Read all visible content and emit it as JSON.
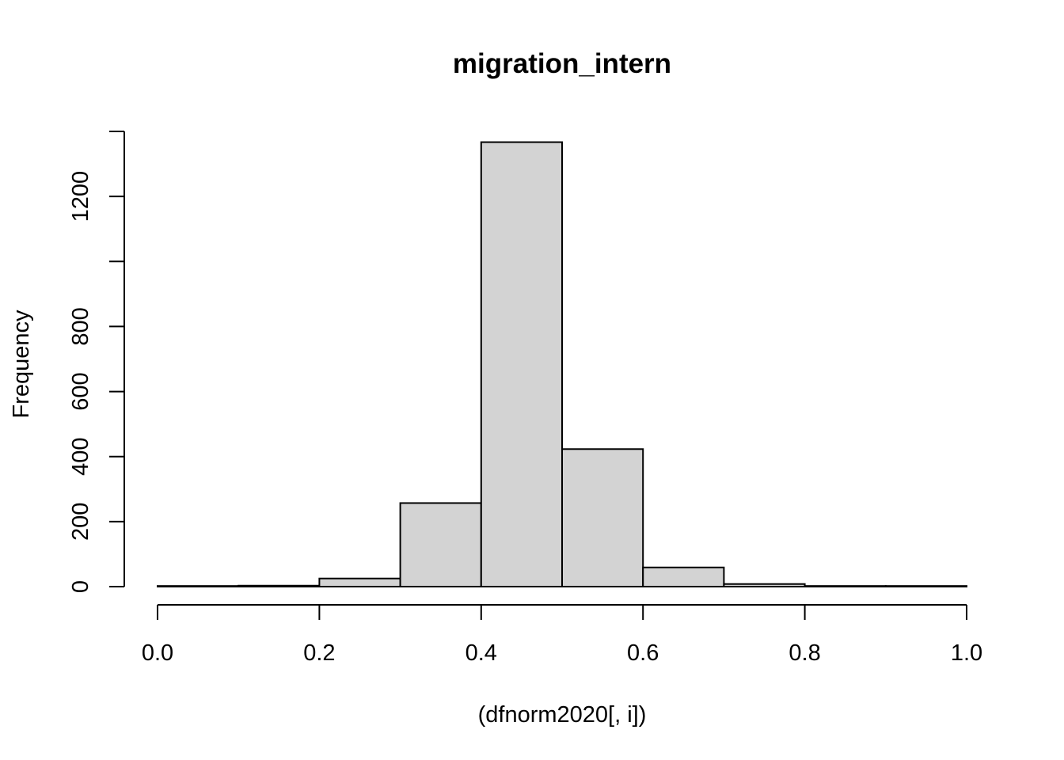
{
  "chart_data": {
    "type": "bar",
    "title": "migration_intern",
    "xlabel": "(dfnorm2020[, i])",
    "ylabel": "Frequency",
    "bins": [
      {
        "start": 0.0,
        "end": 0.1,
        "count": 2
      },
      {
        "start": 0.1,
        "end": 0.2,
        "count": 3
      },
      {
        "start": 0.2,
        "end": 0.3,
        "count": 25
      },
      {
        "start": 0.3,
        "end": 0.4,
        "count": 257
      },
      {
        "start": 0.4,
        "end": 0.5,
        "count": 1367
      },
      {
        "start": 0.5,
        "end": 0.6,
        "count": 423
      },
      {
        "start": 0.6,
        "end": 0.7,
        "count": 59
      },
      {
        "start": 0.7,
        "end": 0.8,
        "count": 8
      },
      {
        "start": 0.8,
        "end": 0.9,
        "count": 2
      },
      {
        "start": 0.9,
        "end": 1.0,
        "count": 2
      }
    ],
    "xlim": [
      0.0,
      1.0
    ],
    "ylim": [
      0,
      1400
    ],
    "x_ticks": [
      0.0,
      0.2,
      0.4,
      0.6,
      0.8,
      1.0
    ],
    "x_tick_labels": [
      "0.0",
      "0.2",
      "0.4",
      "0.6",
      "0.8",
      "1.0"
    ],
    "y_ticks": [
      0,
      200,
      400,
      600,
      800,
      1000,
      1200,
      1400
    ],
    "y_tick_labels": [
      "0",
      "200",
      "400",
      "600",
      "800",
      "",
      "1200",
      ""
    ],
    "bar_fill": "#d3d3d3",
    "grid": false
  }
}
